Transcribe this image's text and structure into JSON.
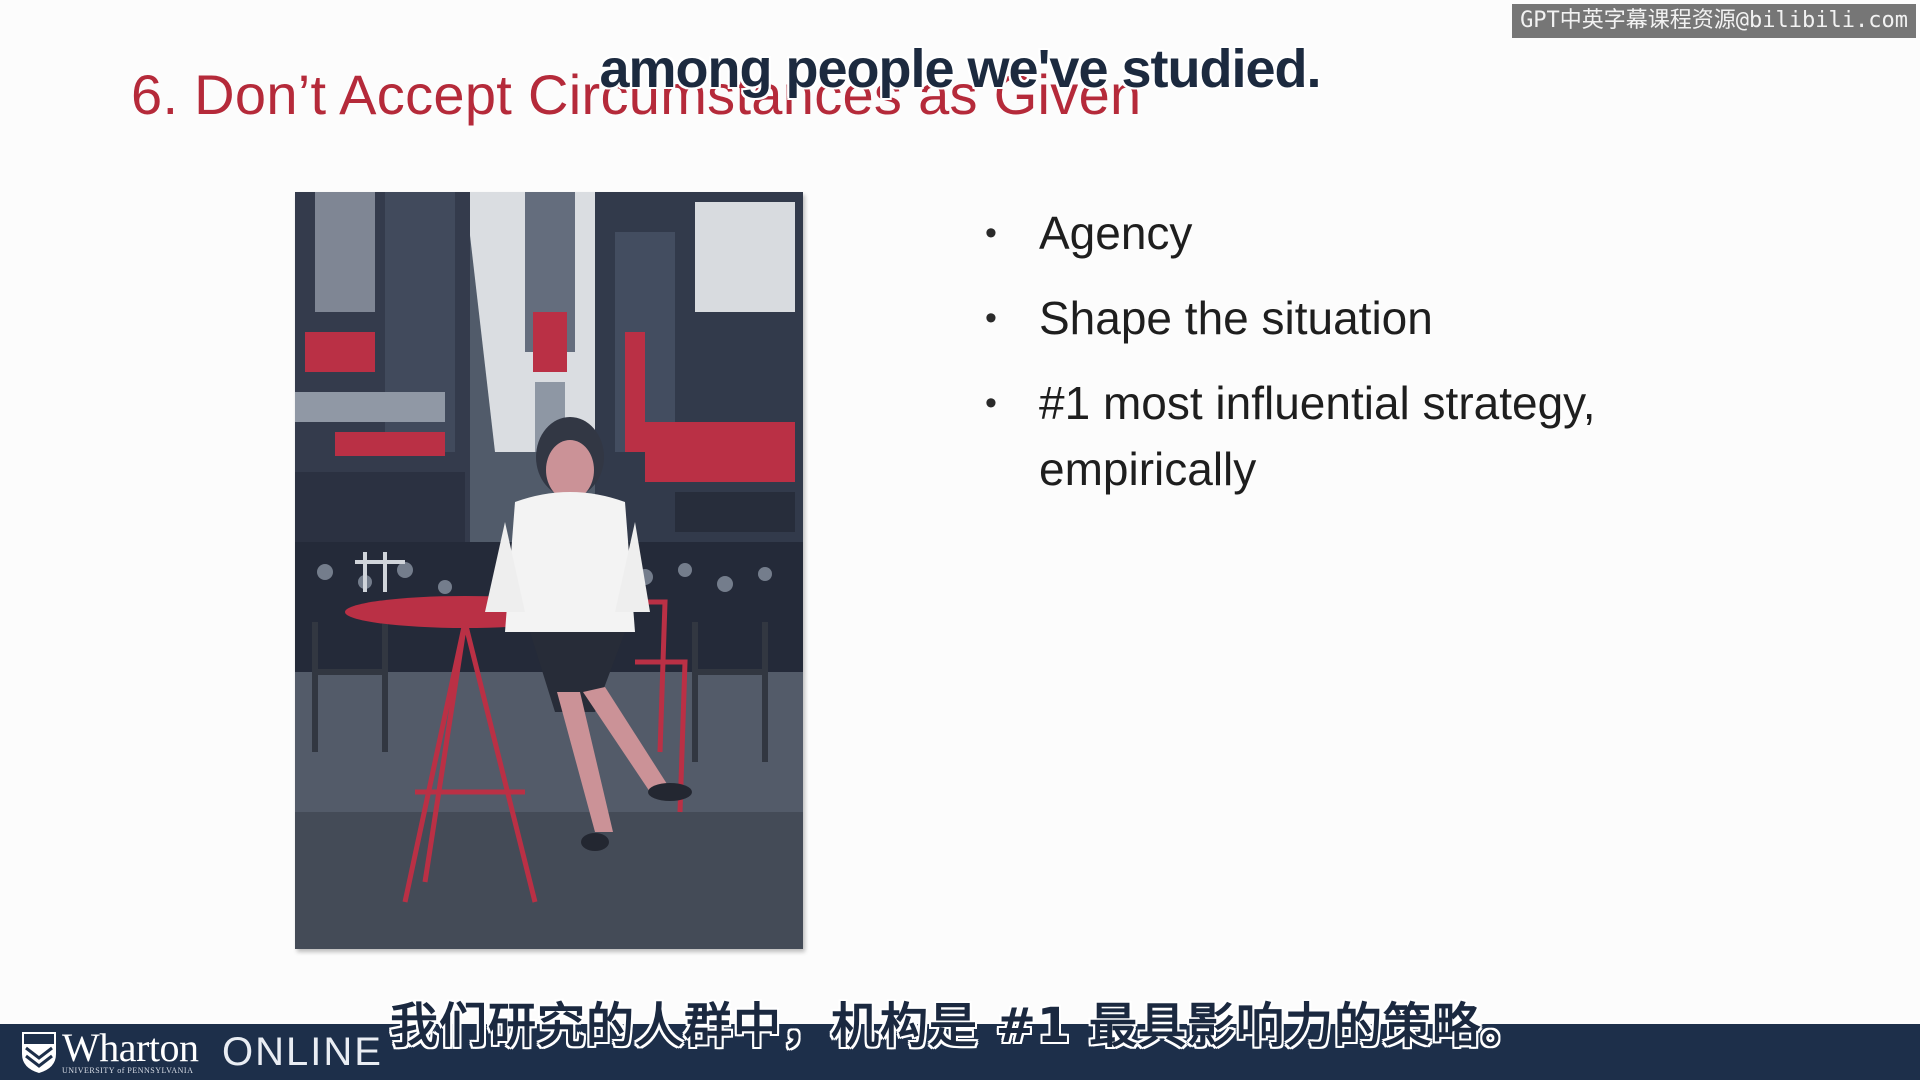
{
  "watermark": "GPT中英字幕课程资源@bilibili.com",
  "slide": {
    "title": "6. Don’t Accept Circumstances as Given",
    "bullets": [
      "Agency",
      "Shape the situation",
      "#1 most influential strategy, empirically"
    ],
    "bullet_glyph": "•",
    "title_color": "#b52a3a"
  },
  "subtitles": {
    "english": "among people we've studied.",
    "chinese": "我们研究的人群中，机构是 #1 最具影响力的策略。"
  },
  "footer": {
    "brand": "Wharton",
    "university": "UNIVERSITY of PENNSYLVANIA",
    "online": "ONLINE",
    "bar_color": "#1d2f4a"
  },
  "photo": {
    "icon": "photo-times-square-woman-at-red-table"
  }
}
